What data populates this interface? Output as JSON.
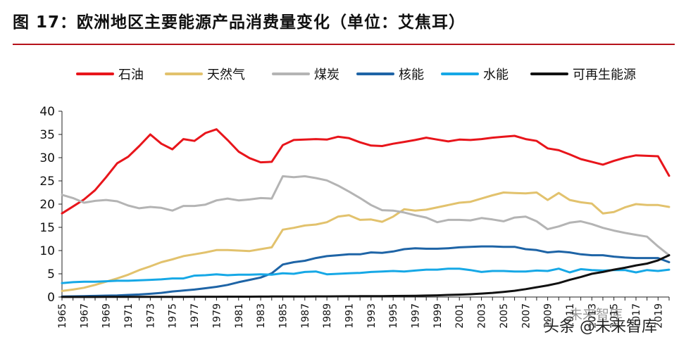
{
  "figure": {
    "title": "图 17：欧洲地区主要能源产品消费量变化（单位：艾焦耳）"
  },
  "watermark": {
    "text": "头条 @未来智库",
    "secondary_text": "未来智库"
  },
  "chart_data": {
    "type": "line",
    "title": "欧洲地区主要能源产品消费量变化（单位：艾焦耳）",
    "xlabel": "",
    "ylabel": "",
    "ylim": [
      0,
      40
    ],
    "yticks": [
      0,
      5,
      10,
      15,
      20,
      25,
      30,
      35,
      40
    ],
    "xlim": [
      1965,
      2020
    ],
    "xticks": [
      1965,
      1967,
      1969,
      1971,
      1973,
      1975,
      1977,
      1979,
      1981,
      1983,
      1985,
      1987,
      1989,
      1991,
      1993,
      1995,
      1997,
      1999,
      2001,
      2003,
      2005,
      2007,
      2009,
      2011,
      2013,
      2015,
      2017,
      2019
    ],
    "grid": false,
    "legend_position": "top",
    "x": [
      1965,
      1966,
      1967,
      1968,
      1969,
      1970,
      1971,
      1972,
      1973,
      1974,
      1975,
      1976,
      1977,
      1978,
      1979,
      1980,
      1981,
      1982,
      1983,
      1984,
      1985,
      1986,
      1987,
      1988,
      1989,
      1990,
      1991,
      1992,
      1993,
      1994,
      1995,
      1996,
      1997,
      1998,
      1999,
      2000,
      2001,
      2002,
      2003,
      2004,
      2005,
      2006,
      2007,
      2008,
      2009,
      2010,
      2011,
      2012,
      2013,
      2014,
      2015,
      2016,
      2017,
      2018,
      2019,
      2020
    ],
    "series": [
      {
        "name": "石油",
        "color": "#e8151b",
        "values": [
          18.0,
          19.5,
          21.0,
          23.0,
          25.8,
          28.8,
          30.2,
          32.5,
          35.0,
          33.0,
          31.8,
          34.0,
          33.6,
          35.3,
          36.1,
          33.8,
          31.3,
          29.9,
          29.0,
          29.1,
          32.7,
          33.8,
          33.9,
          34.0,
          33.9,
          34.5,
          34.2,
          33.3,
          32.6,
          32.5,
          33.0,
          33.4,
          33.8,
          34.3,
          33.9,
          33.5,
          33.9,
          33.8,
          34.0,
          34.3,
          34.5,
          34.7,
          34.0,
          33.6,
          32.0,
          31.6,
          30.7,
          29.7,
          29.1,
          28.5,
          29.3,
          30.0,
          30.5,
          30.4,
          30.3,
          26.1
        ]
      },
      {
        "name": "天然气",
        "color": "#e2c26d",
        "values": [
          1.3,
          1.6,
          2.0,
          2.6,
          3.3,
          4.0,
          4.8,
          5.8,
          6.6,
          7.5,
          8.1,
          8.8,
          9.2,
          9.6,
          10.1,
          10.1,
          10.0,
          9.9,
          10.3,
          10.7,
          14.5,
          14.9,
          15.4,
          15.6,
          16.1,
          17.3,
          17.6,
          16.6,
          16.7,
          16.2,
          17.3,
          18.9,
          18.6,
          18.8,
          19.3,
          19.8,
          20.3,
          20.5,
          21.2,
          21.9,
          22.5,
          22.4,
          22.3,
          22.5,
          20.9,
          22.4,
          20.9,
          20.4,
          20.1,
          18.0,
          18.3,
          19.3,
          20.0,
          19.8,
          19.8,
          19.4
        ]
      },
      {
        "name": "煤炭",
        "color": "#b4b4b4",
        "values": [
          22.0,
          21.3,
          20.3,
          20.7,
          20.9,
          20.6,
          19.7,
          19.1,
          19.4,
          19.2,
          18.6,
          19.6,
          19.6,
          19.9,
          20.8,
          21.2,
          20.8,
          21.0,
          21.3,
          21.2,
          26.0,
          25.8,
          26.0,
          25.6,
          25.1,
          24.0,
          22.7,
          21.3,
          19.8,
          18.7,
          18.6,
          18.2,
          17.6,
          17.1,
          16.1,
          16.6,
          16.6,
          16.5,
          17.0,
          16.7,
          16.3,
          17.1,
          17.3,
          16.3,
          14.6,
          15.2,
          16.0,
          16.3,
          15.7,
          14.9,
          14.3,
          13.8,
          13.4,
          13.0,
          10.9,
          9.0
        ]
      },
      {
        "name": "核能",
        "color": "#1e64a6",
        "values": [
          0.1,
          0.15,
          0.2,
          0.25,
          0.3,
          0.35,
          0.45,
          0.55,
          0.7,
          0.9,
          1.2,
          1.4,
          1.6,
          1.9,
          2.2,
          2.6,
          3.2,
          3.7,
          4.2,
          5.1,
          7.0,
          7.5,
          7.8,
          8.4,
          8.8,
          9.0,
          9.2,
          9.2,
          9.6,
          9.5,
          9.8,
          10.3,
          10.5,
          10.4,
          10.4,
          10.5,
          10.7,
          10.8,
          10.9,
          10.9,
          10.8,
          10.8,
          10.3,
          10.1,
          9.6,
          9.8,
          9.6,
          9.2,
          9.0,
          9.0,
          8.7,
          8.5,
          8.4,
          8.4,
          8.4,
          7.5
        ]
      },
      {
        "name": "水能",
        "color": "#16a8e6",
        "values": [
          3.0,
          3.2,
          3.3,
          3.3,
          3.4,
          3.5,
          3.5,
          3.6,
          3.7,
          3.8,
          4.0,
          4.0,
          4.6,
          4.7,
          4.9,
          4.7,
          4.8,
          4.8,
          4.9,
          4.8,
          5.1,
          5.0,
          5.4,
          5.5,
          4.9,
          5.0,
          5.1,
          5.2,
          5.4,
          5.5,
          5.6,
          5.5,
          5.7,
          5.9,
          5.9,
          6.1,
          6.1,
          5.8,
          5.4,
          5.6,
          5.6,
          5.5,
          5.5,
          5.7,
          5.6,
          6.1,
          5.3,
          6.0,
          5.8,
          5.7,
          5.8,
          5.8,
          5.3,
          5.8,
          5.6,
          5.9
        ]
      },
      {
        "name": "可再生能源",
        "color": "#111111",
        "values": [
          0.02,
          0.02,
          0.02,
          0.02,
          0.03,
          0.03,
          0.03,
          0.04,
          0.04,
          0.05,
          0.05,
          0.05,
          0.06,
          0.06,
          0.06,
          0.07,
          0.08,
          0.08,
          0.09,
          0.1,
          0.1,
          0.11,
          0.12,
          0.13,
          0.14,
          0.15,
          0.17,
          0.18,
          0.19,
          0.2,
          0.23,
          0.25,
          0.28,
          0.32,
          0.37,
          0.45,
          0.52,
          0.6,
          0.75,
          0.9,
          1.1,
          1.35,
          1.7,
          2.1,
          2.5,
          3.0,
          3.7,
          4.3,
          5.0,
          5.4,
          5.9,
          6.3,
          6.8,
          7.2,
          7.9,
          9.0
        ]
      }
    ]
  }
}
